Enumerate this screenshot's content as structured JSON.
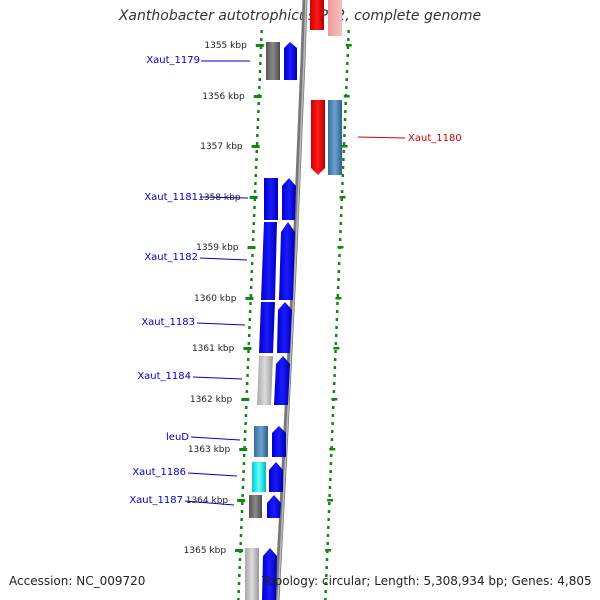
{
  "title": "Xanthobacter autotrophicus Py2, complete genome",
  "accession_text": "Accession: NC_009720",
  "topology_text": "Topology: circular; Length: 5,308,934 bp; Genes: 4,805",
  "ruler": {
    "unit": "kbp",
    "ticks": [
      {
        "label": "1355 kbp"
      },
      {
        "label": "1356 kbp"
      },
      {
        "label": "1357 kbp"
      },
      {
        "label": "1358 kbp"
      },
      {
        "label": "1359 kbp"
      },
      {
        "label": "1360 kbp"
      },
      {
        "label": "1361 kbp"
      },
      {
        "label": "1362 kbp"
      },
      {
        "label": "1363 kbp"
      },
      {
        "label": "1364 kbp"
      },
      {
        "label": "1365 kbp"
      }
    ]
  },
  "gene_labels": [
    {
      "name": "Xaut_1179",
      "color": "#0000cc"
    },
    {
      "name": "Xaut_1180",
      "color": "#cc0000"
    },
    {
      "name": "Xaut_1181",
      "color": "#0000cc"
    },
    {
      "name": "Xaut_1182",
      "color": "#0000cc"
    },
    {
      "name": "Xaut_1183",
      "color": "#0000cc"
    },
    {
      "name": "Xaut_1184",
      "color": "#0000cc"
    },
    {
      "name": "leuD",
      "color": "#0000cc"
    },
    {
      "name": "Xaut_1186",
      "color": "#0000cc"
    },
    {
      "name": "Xaut_1187",
      "color": "#0000cc"
    }
  ],
  "colors": {
    "forward_strand": "#0000ee",
    "reverse_strand": "#ee0000",
    "steel_blue": "#4682b4",
    "grey_block": "#666666",
    "light_grey_block": "#bbbbbb",
    "cyan_block": "#00e5ee",
    "ruler_dots": "#118811",
    "backbone": "#888888"
  }
}
